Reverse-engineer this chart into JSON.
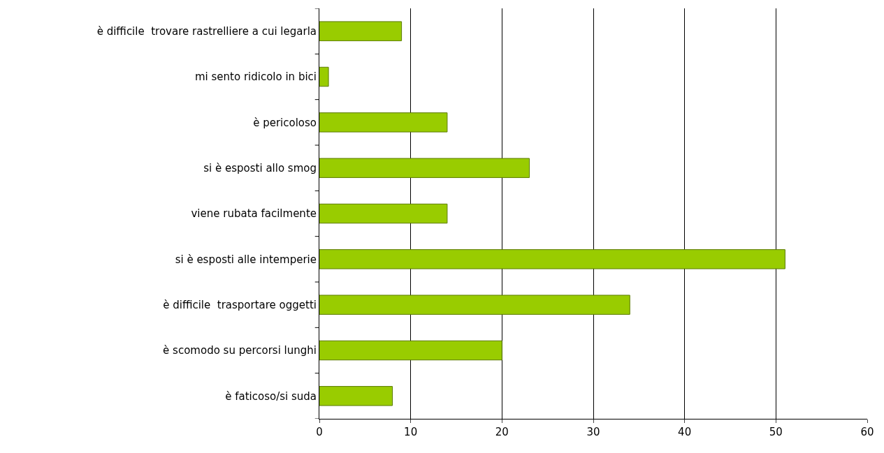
{
  "chart_data": {
    "type": "bar",
    "orientation": "horizontal",
    "categories": [
      "è difficile  trovare rastrelliere a cui legarla",
      "mi sento ridicolo in bici",
      "è pericoloso",
      "si è esposti allo smog",
      "viene rubata facilmente",
      "si è esposti alle intemperie",
      "è difficile  trasportare oggetti",
      "è scomodo su percorsi lunghi",
      "è faticoso/si suda"
    ],
    "values": [
      9,
      1,
      14,
      23,
      14,
      51,
      34,
      20,
      8
    ],
    "color": "#99cc00",
    "xlim": [
      0,
      60
    ],
    "xticks": [
      0,
      10,
      20,
      30,
      40,
      50,
      60
    ],
    "grid": "x"
  }
}
